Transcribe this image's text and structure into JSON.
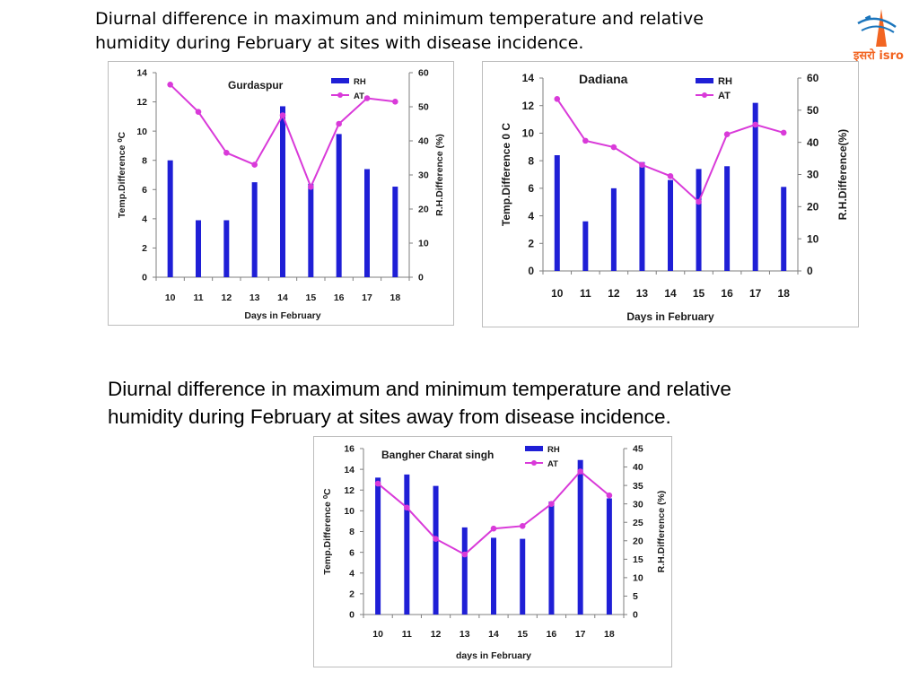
{
  "heading_sites_with_disease": "Diurnal difference in maximum and minimum temperature and relative\nhumidity during February at sites with disease incidence.",
  "heading_sites_away": " Diurnal difference in maximum and minimum temperature and relative\nhumidity during February at sites away from disease incidence.",
  "logo": {
    "icon": "isro-logo-icon",
    "text": "इसरो isro",
    "colors": {
      "orange": "#f26522",
      "blue": "#1b75bc"
    }
  },
  "colors": {
    "rh_bar": "#1f1fd6",
    "at_line": "#d93ad9",
    "axis": "#7f7f7f"
  },
  "chart_data": [
    {
      "type": "bar+line",
      "title": "Gurdaspur",
      "categories": [
        "10",
        "11",
        "12",
        "13",
        "14",
        "15",
        "16",
        "17",
        "18"
      ],
      "xlabel": "Days in February",
      "ylabel_left": "Temp.Difference ⁰C",
      "ylabel_right": "R.H.Difference (%)",
      "ylim_left": [
        0,
        14
      ],
      "yticks_left": [
        "0",
        "2",
        "4",
        "6",
        "8",
        "10",
        "12",
        "14"
      ],
      "ylim_right": [
        0,
        60
      ],
      "yticks_right": [
        "0",
        "10",
        "20",
        "30",
        "40",
        "50",
        "60"
      ],
      "series": [
        {
          "name": "RH",
          "kind": "bar",
          "axis": "left",
          "values": [
            8.0,
            3.9,
            3.9,
            6.5,
            11.7,
            6.4,
            9.8,
            7.4,
            6.2
          ]
        },
        {
          "name": "AT",
          "kind": "line",
          "axis": "right",
          "values": [
            56.5,
            48.5,
            36.5,
            33.0,
            47.5,
            26.5,
            45.0,
            52.5,
            51.5
          ]
        }
      ],
      "legend": "top-right"
    },
    {
      "type": "bar+line",
      "title": "Dadiana",
      "categories": [
        "10",
        "11",
        "12",
        "13",
        "14",
        "15",
        "16",
        "17",
        "18"
      ],
      "xlabel": "Days in February",
      "ylabel_left": "Temp.Difference 0 C",
      "ylabel_right": "R.H.Difference(%)",
      "ylim_left": [
        0,
        14
      ],
      "yticks_left": [
        "0",
        "2",
        "4",
        "6",
        "8",
        "10",
        "12",
        "14"
      ],
      "ylim_right": [
        0,
        60
      ],
      "yticks_right": [
        "0",
        "10",
        "20",
        "30",
        "40",
        "50",
        "60"
      ],
      "series": [
        {
          "name": "RH",
          "kind": "bar",
          "axis": "left",
          "values": [
            8.4,
            3.6,
            6.0,
            7.9,
            6.6,
            7.4,
            7.6,
            12.2,
            6.1
          ]
        },
        {
          "name": "AT",
          "kind": "line",
          "axis": "right",
          "values": [
            53.5,
            40.5,
            38.5,
            33.0,
            29.5,
            21.5,
            42.5,
            45.5,
            43.0
          ]
        }
      ],
      "legend": "top-right"
    },
    {
      "type": "bar+line",
      "title": "Bangher Charat singh",
      "categories": [
        "10",
        "11",
        "12",
        "13",
        "14",
        "15",
        "16",
        "17",
        "18"
      ],
      "xlabel": "days in February",
      "ylabel_left": "Temp.Difference  ⁰C",
      "ylabel_right": "R.H.Difference (%)",
      "ylim_left": [
        0,
        16
      ],
      "yticks_left": [
        "0",
        "2",
        "4",
        "6",
        "8",
        "10",
        "12",
        "14",
        "16"
      ],
      "ylim_right": [
        0,
        45
      ],
      "yticks_right": [
        "0",
        "5",
        "10",
        "15",
        "20",
        "25",
        "30",
        "35",
        "40",
        "45"
      ],
      "series": [
        {
          "name": "RH",
          "kind": "bar",
          "axis": "left",
          "values": [
            13.2,
            13.5,
            12.4,
            8.4,
            7.4,
            7.3,
            10.9,
            14.9,
            11.2
          ]
        },
        {
          "name": "AT",
          "kind": "line",
          "axis": "right",
          "values": [
            35.5,
            29.0,
            20.5,
            16.3,
            23.3,
            24.0,
            30.0,
            38.8,
            32.3
          ]
        }
      ],
      "legend": "top-right"
    }
  ]
}
